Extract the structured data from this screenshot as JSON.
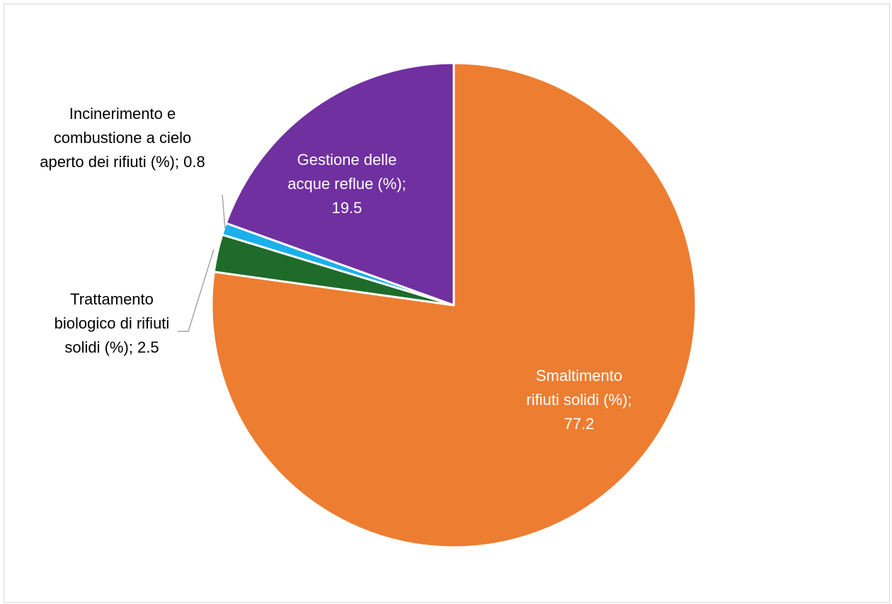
{
  "chart_data": {
    "type": "pie",
    "title": "",
    "slices": [
      {
        "label_lines": [
          "Smaltimento",
          "rifiuti solidi (%);",
          "77.2"
        ],
        "value": 77.2,
        "color": "#ED7D31",
        "label_color": "#ffffff"
      },
      {
        "label_lines": [
          "Trattamento",
          "biologico di rifiuti",
          "solidi (%); 2.5"
        ],
        "value": 2.5,
        "color": "#1E6B2A",
        "label_color": "#000000"
      },
      {
        "label_lines": [
          "Incinerimento e",
          "combustione a cielo",
          "aperto dei rifiuti (%); 0.8"
        ],
        "value": 0.8,
        "color": "#1AB0EA",
        "label_color": "#000000"
      },
      {
        "label_lines": [
          "Gestione delle",
          "acque reflue (%);",
          "19.5"
        ],
        "value": 19.5,
        "color": "#7030A0",
        "label_color": "#ffffff"
      }
    ]
  }
}
